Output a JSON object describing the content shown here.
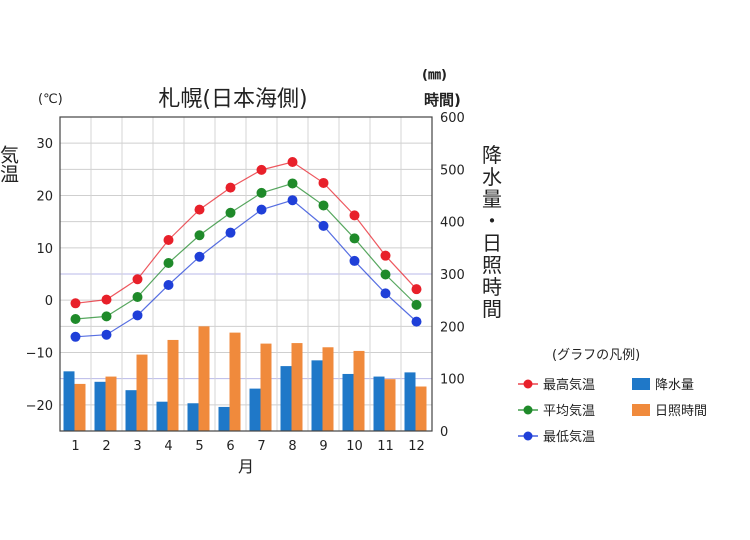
{
  "chart_data": {
    "type": "line",
    "title": "札幌(日本海側)",
    "x": [
      "1",
      "2",
      "3",
      "4",
      "5",
      "6",
      "7",
      "8",
      "9",
      "10",
      "11",
      "12"
    ],
    "xlabel": "月",
    "y_left": {
      "unit": "(℃)",
      "label": "気温",
      "ticks": [
        "30",
        "20",
        "10",
        "0",
        "−10",
        "−20"
      ],
      "range": [
        -25,
        35
      ]
    },
    "y_right": {
      "unit": "(㎜)",
      "unit2": "時間)",
      "label_chars": [
        "降",
        "水",
        "量",
        "・",
        "日",
        "照",
        "時",
        "間"
      ],
      "ticks": [
        "600",
        "500",
        "400",
        "300",
        "200",
        "100",
        "0"
      ],
      "range": [
        0,
        600
      ]
    },
    "grid": true,
    "series_lines": [
      {
        "name": "最高気温",
        "color": "#e8202a",
        "values": [
          -0.6,
          0.1,
          4.0,
          11.5,
          17.3,
          21.5,
          24.9,
          26.4,
          22.4,
          16.2,
          8.5,
          2.1
        ]
      },
      {
        "name": "平均気温",
        "color": "#1f8a2a",
        "values": [
          -3.6,
          -3.1,
          0.6,
          7.1,
          12.4,
          16.7,
          20.5,
          22.3,
          18.1,
          11.8,
          4.9,
          -0.9
        ]
      },
      {
        "name": "最低気温",
        "color": "#1f3fd8",
        "values": [
          -7.0,
          -6.6,
          -2.9,
          2.9,
          8.3,
          12.9,
          17.3,
          19.1,
          14.2,
          7.5,
          1.3,
          -4.1
        ]
      }
    ],
    "series_bars": [
      {
        "name": "降水量",
        "color": "#1f78c8",
        "values": [
          114,
          94,
          78,
          56,
          53,
          46,
          81,
          124,
          135,
          109,
          104,
          112
        ]
      },
      {
        "name": "日照時間",
        "color": "#f08a3c",
        "values": [
          90,
          104,
          146,
          174,
          200,
          188,
          167,
          168,
          160,
          153,
          99,
          85
        ]
      }
    ],
    "legend": {
      "title": "(グラフの凡例)",
      "placement": "right",
      "items": [
        {
          "name": "最高気温",
          "kind": "line",
          "color": "#e8202a"
        },
        {
          "name": "降水量",
          "kind": "bar",
          "color": "#1f78c8"
        },
        {
          "name": "平均気温",
          "kind": "line",
          "color": "#1f8a2a"
        },
        {
          "name": "日照時間",
          "kind": "bar",
          "color": "#f08a3c"
        },
        {
          "name": "最低気温",
          "kind": "line",
          "color": "#1f3fd8"
        }
      ]
    }
  }
}
